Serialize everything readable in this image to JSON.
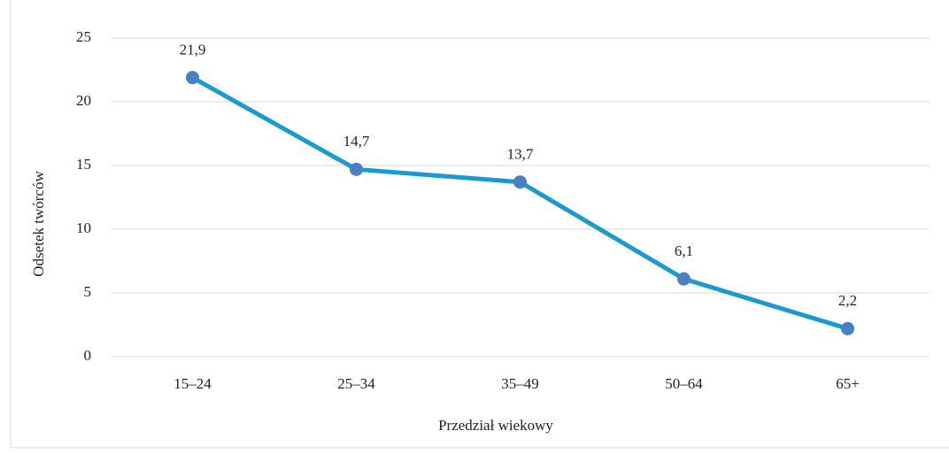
{
  "chart_data": {
    "type": "line",
    "x_label": "Przedział wiekowy",
    "y_label": "Odsetek twórców",
    "categories": [
      "15–24",
      "25–34",
      "35–49",
      "50–64",
      "65+"
    ],
    "series": [
      {
        "name": "Odsetek twórców",
        "color": "#1a9bd0",
        "marker_color": "#4a7fc1",
        "values": [
          21.9,
          14.7,
          13.7,
          6.1,
          2.2
        ],
        "value_labels": [
          "21,9",
          "14,7",
          "13,7",
          "6,1",
          "2,2"
        ]
      }
    ],
    "ylim": [
      0,
      25
    ],
    "yticks": [
      0,
      5,
      10,
      15,
      20,
      25
    ],
    "grid": true
  }
}
